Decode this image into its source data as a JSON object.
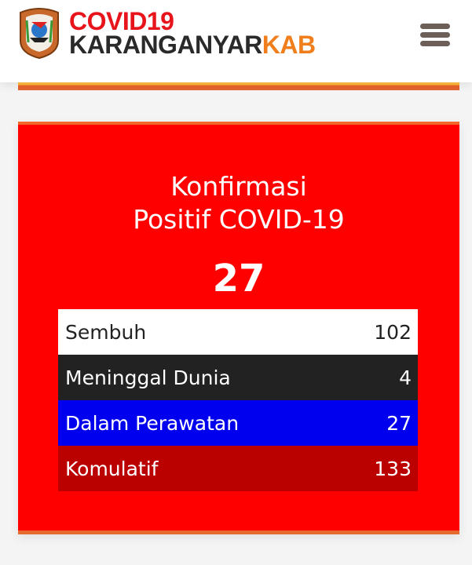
{
  "header": {
    "brand_line1": "COVID19",
    "brand_line2_main": "KARANGANYAR",
    "brand_line2_accent": "KAB",
    "menu_icon": "hamburger-icon"
  },
  "card": {
    "title_line1": "Konfirmasi",
    "title_line2": "Positif COVID-19",
    "count": "27",
    "rows": [
      {
        "label": "Sembuh",
        "value": "102",
        "bg": "#ffffff",
        "fg": "#222222"
      },
      {
        "label": "Meninggal Dunia",
        "value": "4",
        "bg": "#222222",
        "fg": "#ffffff"
      },
      {
        "label": "Dalam Perawatan",
        "value": "27",
        "bg": "#0000ee",
        "fg": "#ffffff"
      },
      {
        "label": "Komulatif",
        "value": "133",
        "bg": "#bb0000",
        "fg": "#ffffff"
      }
    ]
  },
  "colors": {
    "red": "#ff0000",
    "orange": "#f07e1c",
    "brand_red": "#e8141b"
  }
}
